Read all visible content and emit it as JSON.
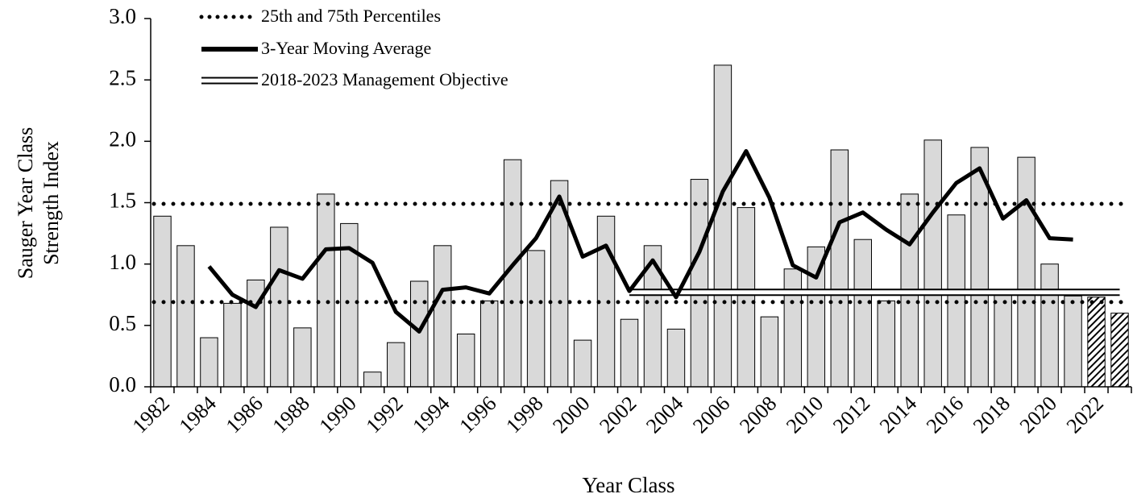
{
  "chart_data": {
    "type": "bar",
    "x_label": "Year Class",
    "y_label": [
      "Sauger Year Class",
      "Strength Index"
    ],
    "categories": [
      "1982",
      null,
      "1984",
      null,
      "1986",
      null,
      "1988",
      null,
      "1990",
      null,
      "1992",
      null,
      "1994",
      null,
      "1996",
      null,
      "1998",
      null,
      "2000",
      null,
      "2002",
      null,
      "2004",
      null,
      "2006",
      null,
      "2008",
      null,
      "2010",
      null,
      "2012",
      null,
      "2014",
      null,
      "2016",
      null,
      "2018",
      null,
      "2020",
      null,
      "2022",
      null
    ],
    "values": [
      1.39,
      1.15,
      0.4,
      0.68,
      0.87,
      1.3,
      0.48,
      1.57,
      1.33,
      0.12,
      0.36,
      0.86,
      1.15,
      0.43,
      0.7,
      1.85,
      1.11,
      1.68,
      0.38,
      1.39,
      0.55,
      1.15,
      0.47,
      1.69,
      2.62,
      1.46,
      0.57,
      0.96,
      1.14,
      1.93,
      1.2,
      0.7,
      1.57,
      2.01,
      1.4,
      1.95,
      0.76,
      1.87,
      1.0,
      0.74,
      0.73,
      0.6
    ],
    "hatched": [
      false,
      false,
      false,
      false,
      false,
      false,
      false,
      false,
      false,
      false,
      false,
      false,
      false,
      false,
      false,
      false,
      false,
      false,
      false,
      false,
      false,
      false,
      false,
      false,
      false,
      false,
      false,
      false,
      false,
      false,
      false,
      false,
      false,
      false,
      false,
      false,
      false,
      false,
      false,
      false,
      true,
      true
    ],
    "color": "#d9d9d9",
    "percentiles": {
      "name": "25th and 75th Percentiles",
      "values": [
        0.69,
        1.49
      ]
    },
    "series": [
      {
        "name": "3-Year Moving Average",
        "color": "#000000",
        "values": [
          null,
          null,
          0.98,
          0.75,
          0.65,
          0.95,
          0.88,
          1.12,
          1.13,
          1.01,
          0.61,
          0.45,
          0.79,
          0.81,
          0.76,
          0.99,
          1.21,
          1.55,
          1.06,
          1.15,
          0.78,
          1.03,
          0.73,
          1.1,
          1.59,
          1.92,
          1.54,
          0.99,
          0.89,
          1.34,
          1.42,
          1.28,
          1.16,
          1.42,
          1.66,
          1.78,
          1.37,
          1.52,
          1.21,
          1.2,
          null,
          null
        ]
      },
      {
        "name": "2018-2023 Management Objective",
        "color": "#ffffff",
        "values": [
          null,
          null,
          null,
          null,
          null,
          null,
          null,
          null,
          null,
          null,
          null,
          null,
          null,
          null,
          null,
          null,
          null,
          null,
          null,
          null,
          0.77,
          0.77,
          0.77,
          0.77,
          0.77,
          0.77,
          0.77,
          0.77,
          0.77,
          0.77,
          0.77,
          0.77,
          0.77,
          0.77,
          0.77,
          0.77,
          0.77,
          0.77,
          0.77,
          0.77,
          0.77,
          0.77
        ]
      }
    ],
    "ylim": [
      0,
      3
    ],
    "yticks": [
      {
        "value": 0,
        "label": "0.0"
      },
      {
        "value": 0.5,
        "label": "0.5"
      },
      {
        "value": 1,
        "label": "1.0"
      },
      {
        "value": 1.5,
        "label": "1.5"
      },
      {
        "value": 2,
        "label": "2.0"
      },
      {
        "value": 2.5,
        "label": "2.5"
      },
      {
        "value": 3,
        "label": "3.0"
      }
    ]
  }
}
